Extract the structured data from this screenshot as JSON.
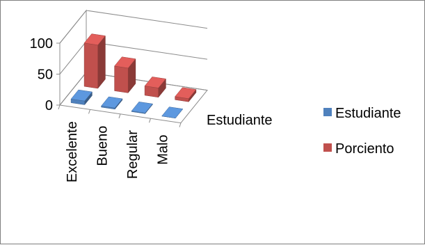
{
  "chart_data": {
    "type": "bar",
    "subtype": "3d-column",
    "categories": [
      "Excelente",
      "Bueno",
      "Regular",
      "Malo"
    ],
    "depth_axis_label": "Estudiante",
    "series": [
      {
        "name": "Estudiante",
        "values": [
          6,
          2,
          1,
          0
        ],
        "color": "#4f81bd"
      },
      {
        "name": "Porciento",
        "values": [
          70,
          40,
          15,
          5
        ],
        "color": "#c0504d"
      }
    ],
    "yticks": [
      0,
      50,
      100
    ],
    "ylim": [
      0,
      100
    ],
    "legend_position": "right",
    "grid": true
  }
}
